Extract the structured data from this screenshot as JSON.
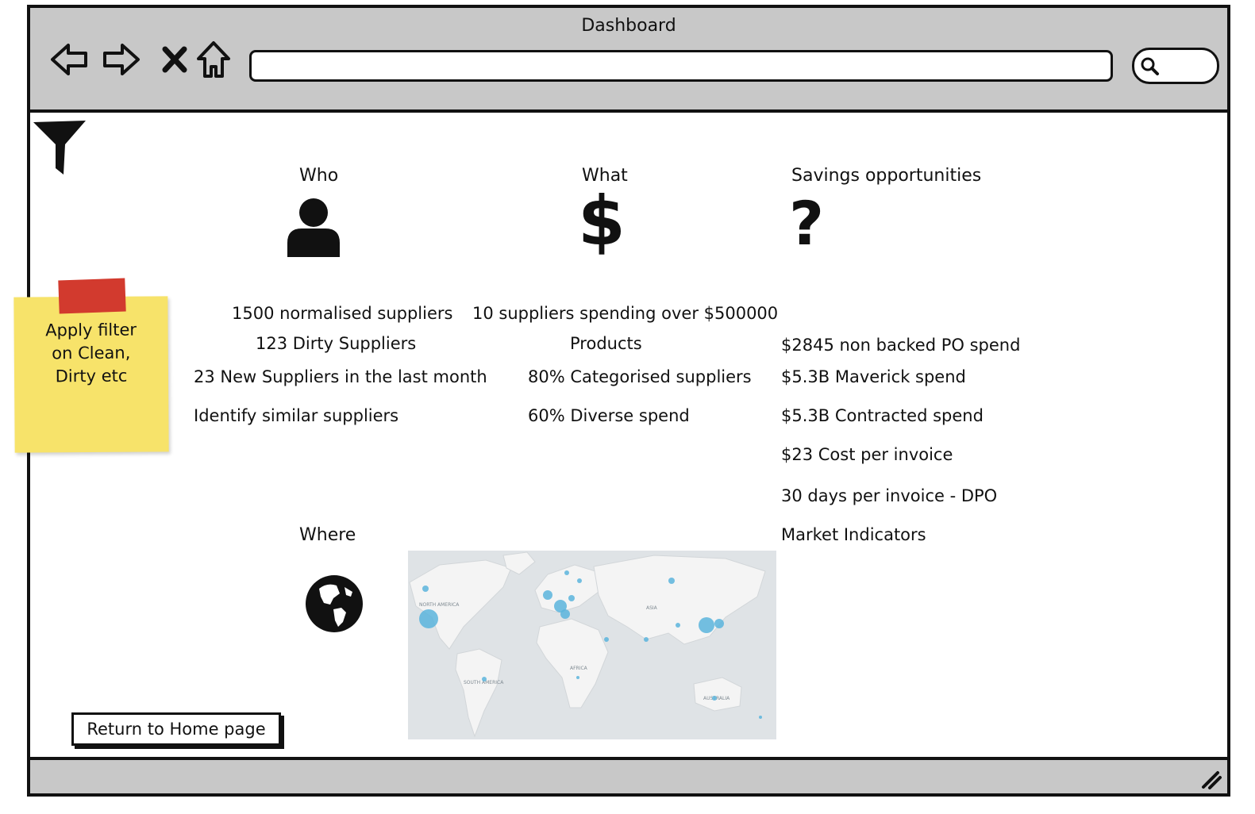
{
  "window": {
    "title": "Dashboard"
  },
  "filter": {
    "icon": "filter-icon"
  },
  "sticky_note": {
    "text": "Apply filter\non Clean,\nDirty etc"
  },
  "sections": {
    "who": {
      "heading": "Who",
      "icon": "user-icon"
    },
    "what": {
      "heading": "What",
      "icon": "dollar-icon"
    },
    "savings": {
      "heading": "Savings opportunities",
      "icon": "question-icon"
    },
    "where": {
      "heading": "Where",
      "icon": "globe-icon"
    }
  },
  "who_items": [
    "1500 normalised suppliers",
    "123 Dirty Suppliers",
    "23 New Suppliers in the last month",
    "Identify similar suppliers"
  ],
  "what_items": [
    "10 suppliers spending over $500000",
    "Products",
    "80% Categorised suppliers",
    "60% Diverse spend"
  ],
  "savings_items": [
    "$2845 non backed PO spend",
    "$5.3B  Maverick spend",
    "$5.3B  Contracted spend",
    "$23  Cost per invoice",
    "30 days per invoice - DPO",
    "Market Indicators"
  ],
  "map": {
    "labels": [
      "NORTH AMERICA",
      "ASIA",
      "AFRICA",
      "SOUTH AMERICA",
      "AUSTRALIA"
    ],
    "colors": {
      "land": "#f4f4f4",
      "water": "#dfe3e6",
      "bubble": "#5ab4dc"
    }
  },
  "buttons": {
    "home": "Return to Home page"
  }
}
